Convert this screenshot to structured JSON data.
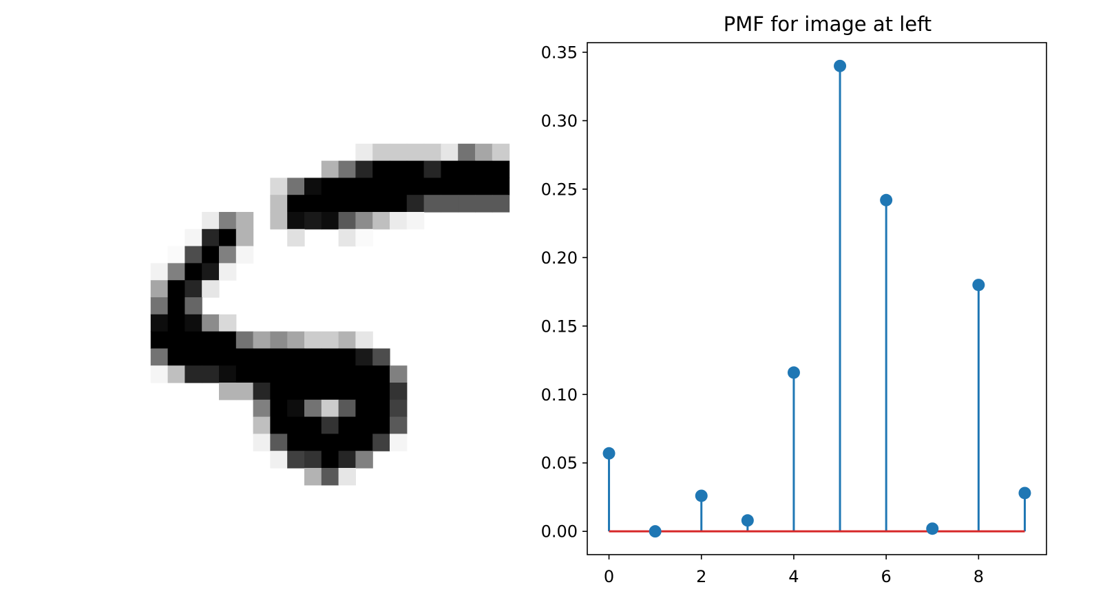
{
  "digit_image": {
    "pixels": [
      [
        0,
        0,
        0,
        0,
        0,
        0,
        0,
        0,
        0,
        0,
        0,
        0,
        0,
        0,
        0,
        0,
        0,
        0,
        0,
        0,
        0,
        0,
        0,
        0,
        0,
        0,
        0,
        0
      ],
      [
        0,
        0,
        0,
        0,
        0,
        0,
        0,
        0,
        0,
        0,
        0,
        0,
        0,
        0,
        0,
        0,
        0,
        0,
        0,
        0,
        0,
        0,
        0,
        0,
        0,
        0,
        0,
        0
      ],
      [
        0,
        0,
        0,
        0,
        0,
        0,
        0,
        0,
        0,
        0,
        0,
        0,
        0,
        0,
        0,
        0,
        0,
        0,
        0,
        0,
        0,
        0,
        0,
        0,
        0,
        0,
        0,
        0
      ],
      [
        0,
        0,
        0,
        0,
        0,
        0,
        0,
        0,
        0,
        0,
        0,
        0,
        0,
        0,
        0,
        0,
        0,
        0,
        0,
        0,
        0,
        0,
        0,
        0,
        0,
        0,
        0,
        0
      ],
      [
        0,
        0,
        0,
        0,
        0,
        0,
        0,
        0,
        0,
        0,
        0,
        0,
        0,
        0,
        0,
        0,
        0,
        0,
        0,
        0,
        0,
        0,
        0,
        0,
        0,
        0,
        0,
        0
      ],
      [
        0,
        0,
        0,
        0,
        0,
        0,
        0,
        0,
        0,
        0,
        0,
        0,
        0,
        0,
        0,
        0,
        0,
        0,
        0,
        0,
        0,
        0,
        0,
        0,
        0,
        0,
        0,
        0
      ],
      [
        0,
        0,
        0,
        0,
        0,
        0,
        0,
        0,
        0,
        0,
        0,
        0,
        0,
        0,
        0,
        0,
        0,
        0,
        0.08,
        0.2,
        0.2,
        0.2,
        0.2,
        0.1,
        0.55,
        0.35,
        0.2,
        0
      ],
      [
        0,
        0,
        0,
        0,
        0,
        0,
        0,
        0,
        0,
        0,
        0,
        0,
        0,
        0,
        0,
        0,
        0.3,
        0.55,
        0.85,
        1,
        1,
        1,
        0.85,
        1,
        1,
        1,
        1,
        0
      ],
      [
        0,
        0,
        0,
        0,
        0,
        0,
        0,
        0,
        0,
        0,
        0,
        0,
        0,
        0.15,
        0.55,
        0.95,
        1,
        1,
        1,
        1,
        1,
        1,
        1,
        1,
        1,
        1,
        1,
        0
      ],
      [
        0,
        0,
        0,
        0,
        0,
        0,
        0,
        0,
        0,
        0,
        0,
        0,
        0,
        0.25,
        1,
        1,
        1,
        1,
        1,
        1,
        1,
        0.85,
        0.65,
        0.65,
        0.65,
        0.65,
        0.65,
        0
      ],
      [
        0,
        0,
        0,
        0,
        0,
        0,
        0,
        0,
        0,
        0.08,
        0.5,
        0.3,
        0,
        0.25,
        0.95,
        0.9,
        0.95,
        0.65,
        0.45,
        0.25,
        0.08,
        0.04,
        0,
        0,
        0,
        0,
        0,
        0
      ],
      [
        0,
        0,
        0,
        0,
        0,
        0,
        0,
        0,
        0.04,
        0.85,
        1,
        0.3,
        0,
        0,
        0.12,
        0,
        0,
        0.1,
        0.02,
        0,
        0,
        0,
        0,
        0,
        0,
        0,
        0,
        0
      ],
      [
        0,
        0,
        0,
        0,
        0,
        0,
        0,
        0.02,
        0.7,
        1,
        0.5,
        0.04,
        0,
        0,
        0,
        0,
        0,
        0,
        0,
        0,
        0,
        0,
        0,
        0,
        0,
        0,
        0,
        0
      ],
      [
        0,
        0,
        0,
        0,
        0,
        0,
        0.05,
        0.5,
        1,
        0.9,
        0.06,
        0,
        0,
        0,
        0,
        0,
        0,
        0,
        0,
        0,
        0,
        0,
        0,
        0,
        0,
        0,
        0,
        0
      ],
      [
        0,
        0,
        0,
        0,
        0,
        0,
        0.35,
        1,
        0.85,
        0.1,
        0,
        0,
        0,
        0,
        0,
        0,
        0,
        0,
        0,
        0,
        0,
        0,
        0,
        0,
        0,
        0,
        0,
        0
      ],
      [
        0,
        0,
        0,
        0,
        0,
        0,
        0.55,
        1,
        0.6,
        0,
        0,
        0,
        0,
        0,
        0,
        0,
        0,
        0,
        0,
        0,
        0,
        0,
        0,
        0,
        0,
        0,
        0,
        0,
        0
      ],
      [
        0,
        0,
        0,
        0,
        0,
        0,
        0.95,
        1,
        0.95,
        0.45,
        0.15,
        0,
        0,
        0,
        0,
        0,
        0,
        0,
        0,
        0,
        0,
        0,
        0,
        0,
        0,
        0,
        0,
        0
      ],
      [
        0,
        0,
        0,
        0,
        0,
        0,
        1,
        1,
        1,
        1,
        1,
        0.55,
        0.35,
        0.45,
        0.35,
        0.2,
        0.2,
        0.3,
        0.1,
        0,
        0,
        0,
        0,
        0,
        0,
        0,
        0,
        0
      ],
      [
        0,
        0,
        0,
        0,
        0,
        0,
        0.55,
        1,
        1,
        1,
        1,
        1,
        1,
        1,
        1,
        1,
        1,
        1,
        0.9,
        0.7,
        0,
        0,
        0,
        0,
        0,
        0,
        0,
        0
      ],
      [
        0,
        0,
        0,
        0,
        0,
        0,
        0.04,
        0.25,
        0.85,
        0.85,
        0.95,
        1,
        1,
        1,
        1,
        1,
        1,
        1,
        1,
        1,
        0.5,
        0,
        0,
        0,
        0,
        0,
        0,
        0
      ],
      [
        0,
        0,
        0,
        0,
        0,
        0,
        0,
        0,
        0,
        0,
        0.3,
        0.3,
        0.85,
        1,
        1,
        1,
        1,
        1,
        1,
        1,
        0.8,
        0,
        0,
        0,
        0,
        0,
        0,
        0
      ],
      [
        0,
        0,
        0,
        0,
        0,
        0,
        0,
        0,
        0,
        0,
        0,
        0,
        0.5,
        1,
        0.95,
        0.55,
        0.2,
        0.65,
        1,
        1,
        0.75,
        0,
        0,
        0,
        0,
        0,
        0,
        0
      ],
      [
        0,
        0,
        0,
        0,
        0,
        0,
        0,
        0,
        0,
        0,
        0,
        0,
        0.25,
        1,
        1,
        1,
        0.8,
        1,
        1,
        1,
        0.65,
        0,
        0,
        0,
        0,
        0,
        0,
        0
      ],
      [
        0,
        0,
        0,
        0,
        0,
        0,
        0,
        0,
        0,
        0,
        0,
        0,
        0.06,
        0.65,
        1,
        1,
        1,
        1,
        1,
        0.75,
        0.04,
        0,
        0,
        0,
        0,
        0,
        0,
        0
      ],
      [
        0,
        0,
        0,
        0,
        0,
        0,
        0,
        0,
        0,
        0,
        0,
        0,
        0,
        0.06,
        0.75,
        0.8,
        1,
        0.85,
        0.5,
        0,
        0,
        0,
        0,
        0,
        0,
        0,
        0,
        0
      ],
      [
        0,
        0,
        0,
        0,
        0,
        0,
        0,
        0,
        0,
        0,
        0,
        0,
        0,
        0,
        0,
        0.3,
        0.65,
        0.1,
        0,
        0,
        0,
        0,
        0,
        0,
        0,
        0,
        0,
        0
      ],
      [
        0,
        0,
        0,
        0,
        0,
        0,
        0,
        0,
        0,
        0,
        0,
        0,
        0,
        0,
        0,
        0,
        0,
        0,
        0,
        0,
        0,
        0,
        0,
        0,
        0,
        0,
        0,
        0
      ],
      [
        0,
        0,
        0,
        0,
        0,
        0,
        0,
        0,
        0,
        0,
        0,
        0,
        0,
        0,
        0,
        0,
        0,
        0,
        0,
        0,
        0,
        0,
        0,
        0,
        0,
        0,
        0,
        0
      ]
    ]
  },
  "chart_data": {
    "type": "stem",
    "title": "PMF for image at left",
    "xlabel": "",
    "ylabel": "",
    "x": [
      0,
      1,
      2,
      3,
      4,
      5,
      6,
      7,
      8,
      9
    ],
    "values": [
      0.057,
      0.0,
      0.026,
      0.008,
      0.116,
      0.34,
      0.242,
      0.002,
      0.18,
      0.028
    ],
    "xlim": [
      -0.47,
      9.47
    ],
    "ylim": [
      -0.017,
      0.357
    ],
    "xticks": [
      0,
      2,
      4,
      6,
      8
    ],
    "xtick_labels": [
      "0",
      "2",
      "4",
      "6",
      "8"
    ],
    "yticks": [
      0.0,
      0.05,
      0.1,
      0.15,
      0.2,
      0.25,
      0.3,
      0.35
    ],
    "ytick_labels": [
      "0.00",
      "0.05",
      "0.10",
      "0.15",
      "0.20",
      "0.25",
      "0.30",
      "0.35"
    ],
    "grid": false,
    "colors": {
      "stem": "#1f77b4",
      "marker": "#1f77b4",
      "baseline": "#d62728",
      "axes": "#000000"
    }
  }
}
